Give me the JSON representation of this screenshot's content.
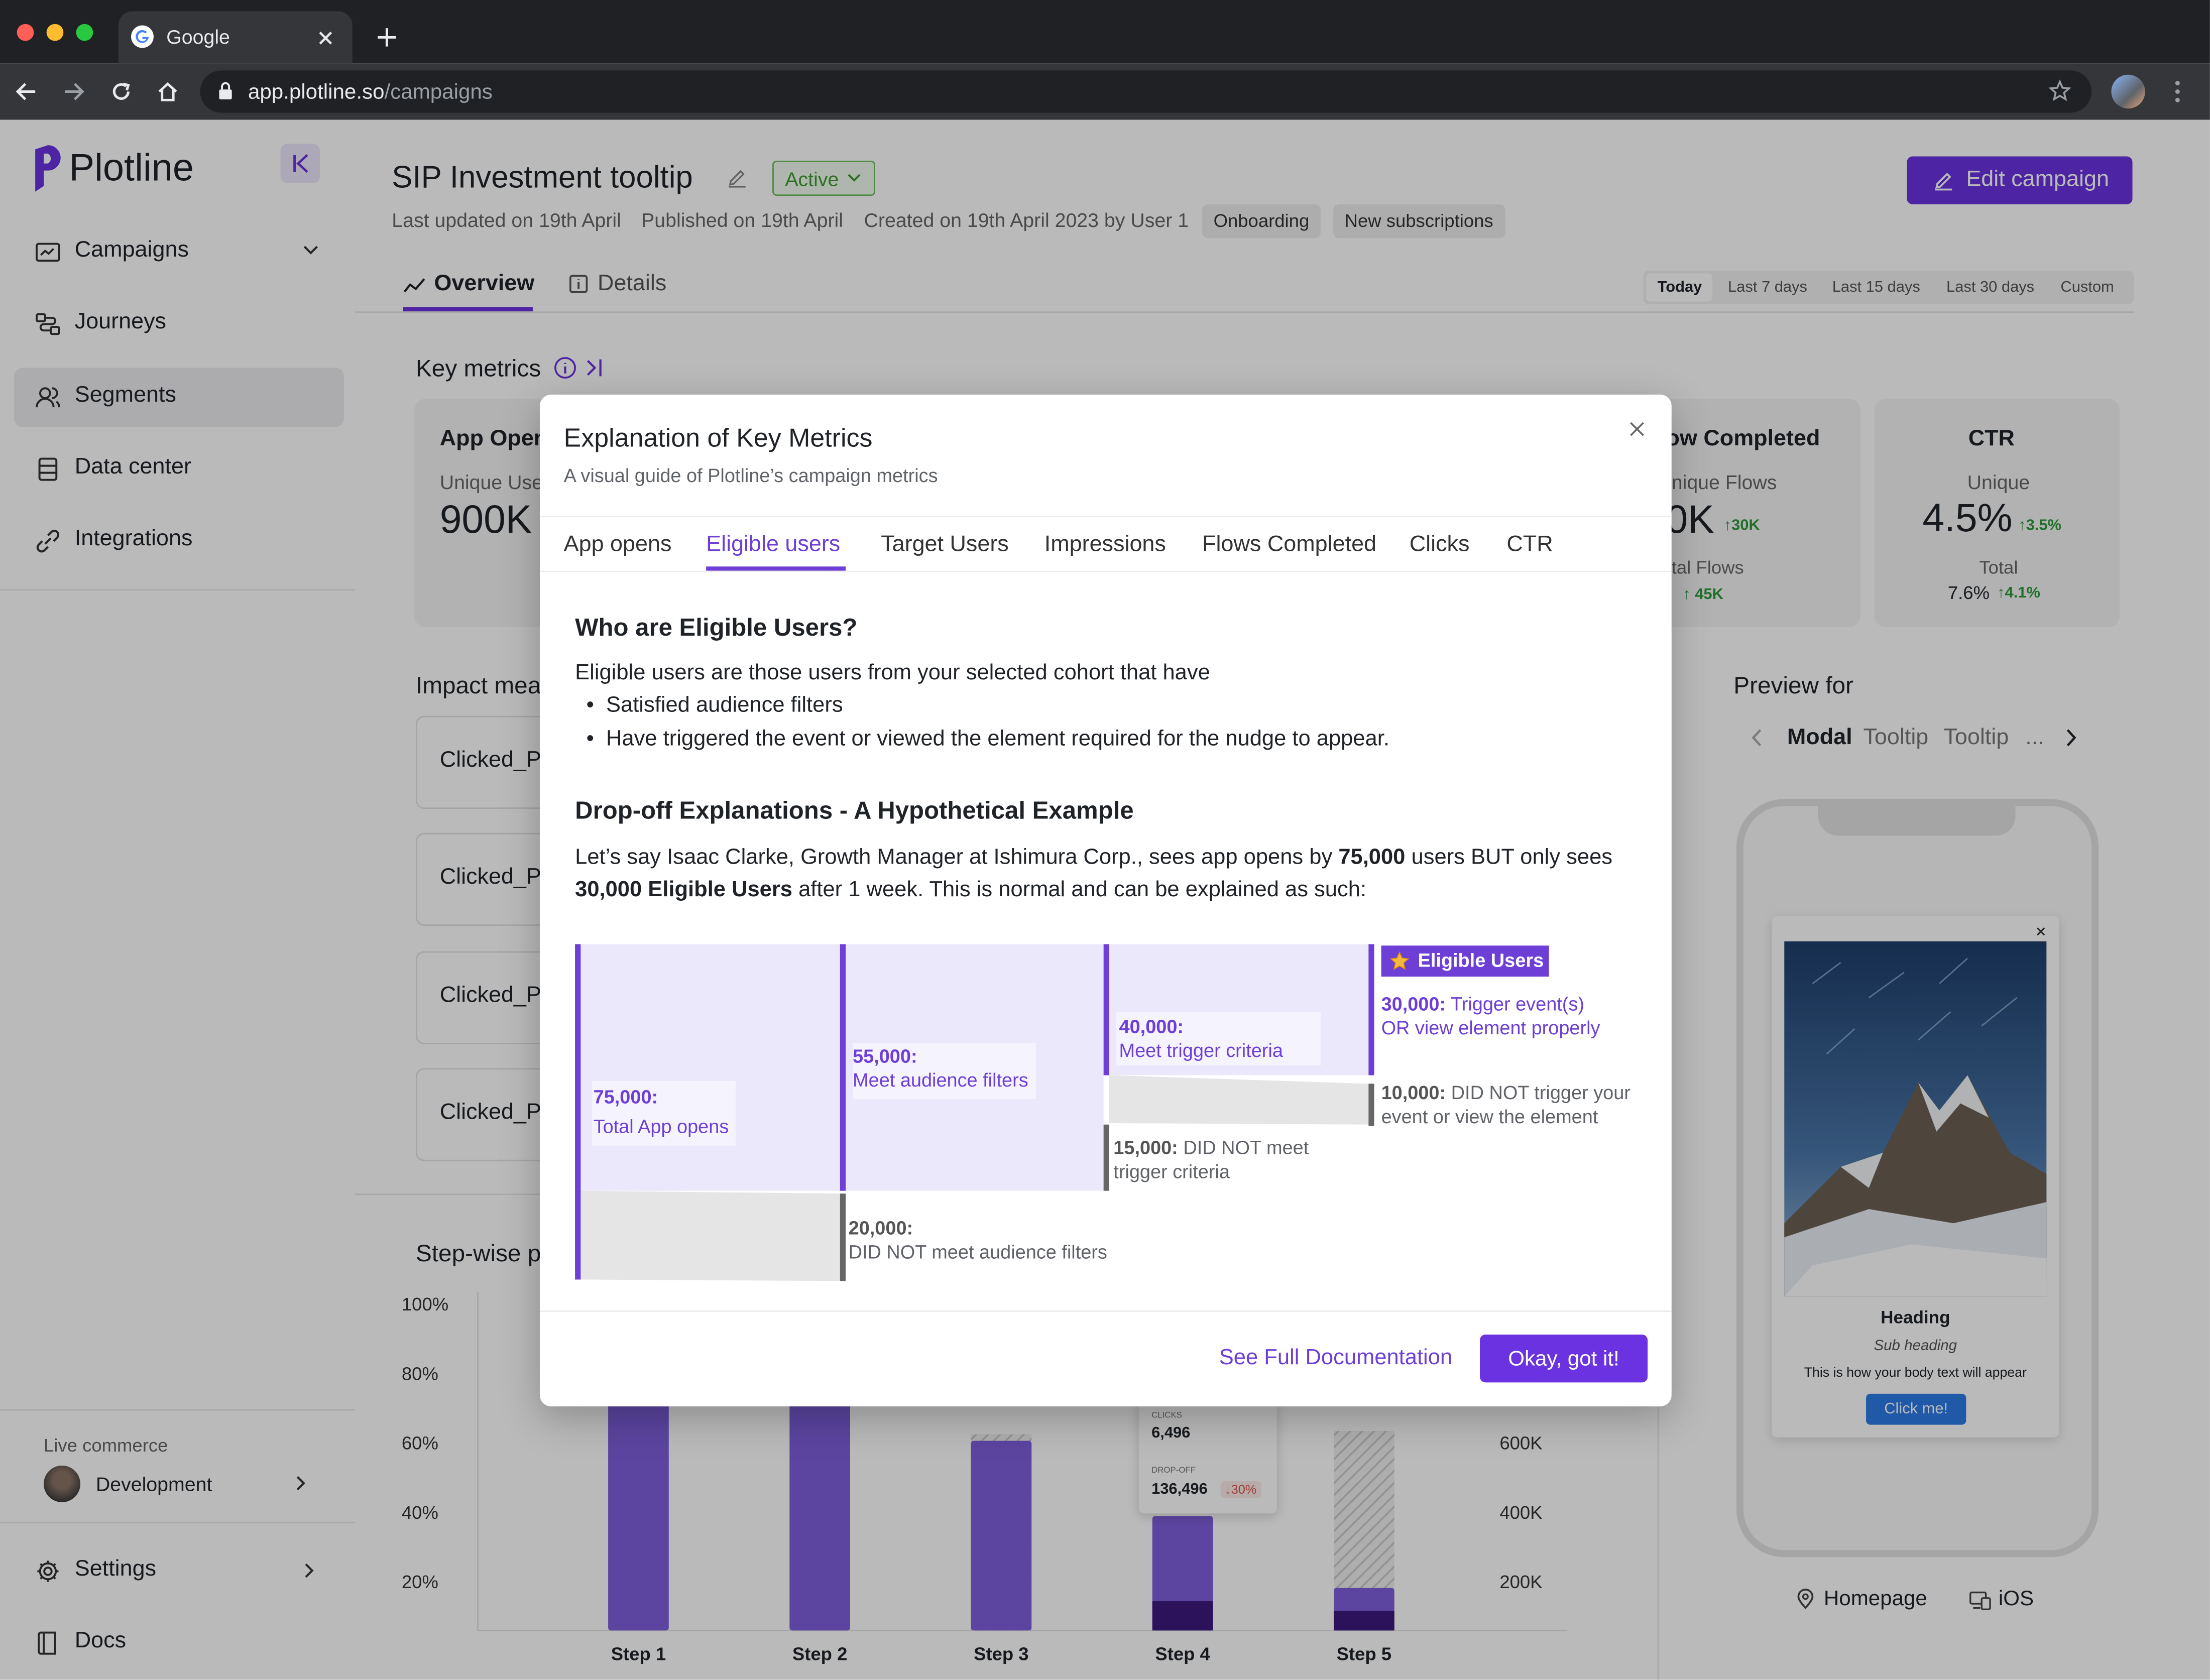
{
  "browser": {
    "tab_title": "Google",
    "url_domain": "app.plotline.so",
    "url_path": "/campaigns"
  },
  "sidebar": {
    "brand": "Plotline",
    "items": [
      {
        "label": "Campaigns",
        "icon": "campaigns-icon"
      },
      {
        "label": "Journeys",
        "icon": "journeys-icon"
      },
      {
        "label": "Segments",
        "icon": "segments-icon"
      },
      {
        "label": "Data center",
        "icon": "data-center-icon"
      },
      {
        "label": "Integrations",
        "icon": "integrations-icon"
      }
    ],
    "workspace_label": "Live commerce",
    "workspace_value": "Development",
    "settings_label": "Settings",
    "docs_label": "Docs"
  },
  "header": {
    "title": "SIP Investment tooltip",
    "status": "Active",
    "last_updated": "Last updated on 19th April",
    "published": "Published on 19th April",
    "created": "Created on 19th April 2023 by User 1",
    "tags": [
      "Onboarding",
      "New subscriptions"
    ],
    "edit_button": "Edit campaign"
  },
  "page_tabs": {
    "overview": "Overview",
    "details": "Details"
  },
  "date_ranges": {
    "today": "Today",
    "last7": "Last 7 days",
    "last15": "Last 15 days",
    "last30": "Last 30 days",
    "custom": "Custom"
  },
  "key_metrics": {
    "title": "Key metrics",
    "app_opens": {
      "label": "App Open",
      "sub": "Unique Use",
      "value": "900K"
    },
    "flows": {
      "label": "ow Completed",
      "sub": "nique Flows",
      "value": "0K",
      "delta": "30K",
      "total_label": "tal Flows",
      "total_delta": "45K"
    },
    "ctr": {
      "label": "CTR",
      "sub": "Unique",
      "value": "4.5%",
      "delta": "3.5%",
      "total_label": "Total",
      "total_value": "7.6%",
      "total_delta": "4.1%"
    }
  },
  "impact": {
    "title": "Impact mea",
    "items": [
      "Clicked_P",
      "Clicked_P",
      "Clicked_P",
      "Clicked_P"
    ]
  },
  "stepwise": {
    "title": "Step-wise p",
    "tooltip": {
      "clicks_label": "CLICKS",
      "clicks_value": "6,496",
      "dropoff_label": "DROP-OFF",
      "dropoff_value": "136,496",
      "dropoff_delta": "30%"
    }
  },
  "chart_data": {
    "type": "bar",
    "categories": [
      "Step 1",
      "Step 2",
      "Step 3",
      "Step 4",
      "Step 5"
    ],
    "y_left_ticks": [
      "100%",
      "80%",
      "60%",
      "40%",
      "20%"
    ],
    "y_right_ticks": [
      "600K",
      "400K",
      "200K"
    ],
    "ylim": [
      0,
      100
    ],
    "series": [
      {
        "values": [
          100,
          100,
          58,
          35,
          13
        ]
      },
      {
        "values": [
          0,
          0,
          0,
          9,
          6
        ]
      }
    ],
    "hatched_tops": [
      null,
      null,
      60,
      null,
      61
    ]
  },
  "preview": {
    "title": "Preview for",
    "tabs": [
      "Modal",
      "Tooltip",
      "Tooltip",
      "..."
    ],
    "modal_heading": "Heading",
    "modal_subheading": "Sub heading",
    "modal_body": "This is how your body text will appear",
    "modal_button": "Click me!",
    "page": "Homepage",
    "platform": "iOS"
  },
  "modal": {
    "title": "Explanation of Key Metrics",
    "subtitle": "A visual guide of Plotline’s campaign metrics",
    "tabs": [
      "App opens",
      "Eligible users",
      "Target Users",
      "Impressions",
      "Flows Completed",
      "Clicks",
      "CTR"
    ],
    "section1_title": "Who are Eligible Users?",
    "section1_intro": "Eligible users are those users from your selected cohort that have",
    "bullets": [
      "Satisfied audience filters",
      "Have triggered the event or viewed the element required for the nudge to appear."
    ],
    "section2_title": "Drop-off Explanations - A Hypothetical Example",
    "example": {
      "p1": "Let’s say Isaac Clarke, Growth Manager at Ishimura Corp., sees app opens by ",
      "b1": "75,000",
      "p2": " users BUT only sees",
      "b2": "30,000 Eligible Users",
      "p3": " after 1 week. This is normal and can be explained as such:"
    },
    "funnel": {
      "badge": "Eligible Users",
      "steps": [
        {
          "value": "75,000:",
          "label": "Total App opens"
        },
        {
          "value": "55,000:",
          "label": "Meet audience filters"
        },
        {
          "value": "40,000:",
          "label": "Meet trigger criteria"
        },
        {
          "value": "30,000:",
          "label1": "Trigger event(s)",
          "label2": "OR view element properly"
        }
      ],
      "drops": [
        {
          "value": "20,000:",
          "label": "DID NOT meet audience filters"
        },
        {
          "value": "15,000:",
          "label1": "DID NOT meet",
          "label2": "trigger criteria"
        },
        {
          "value": "10,000:",
          "label1": "DID NOT trigger your",
          "label2": "event or view the element"
        }
      ]
    },
    "doc_link": "See Full Documentation",
    "ok_button": "Okay, got it!"
  }
}
